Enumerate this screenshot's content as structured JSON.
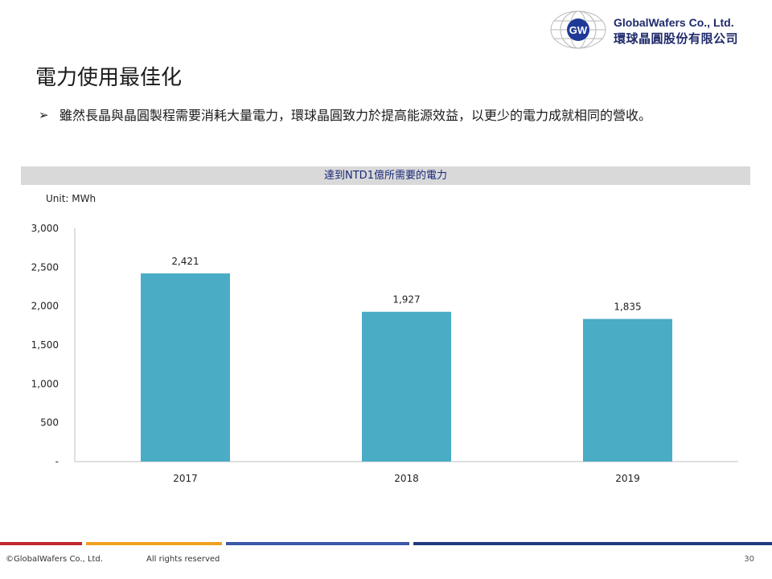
{
  "logo": {
    "company_en": "GlobalWafers Co., Ltd.",
    "company_zh": "環球晶圓股份有限公司",
    "mark": "GW"
  },
  "page_title": "電力使用最佳化",
  "bullet": {
    "icon": "arrow-bullet-icon",
    "glyph": "➢",
    "text": "雖然長晶與晶圓製程需要消耗大量電力，環球晶圓致力於提高能源效益，以更少的電力成就相同的營收。"
  },
  "chart_header": "達到NTD1億所需要的電力",
  "unit_label": "Unit: MWh",
  "chart_data": {
    "type": "bar",
    "title": "達到NTD1億所需要的電力",
    "categories": [
      "2017",
      "2018",
      "2019"
    ],
    "values": [
      2421,
      1927,
      1835
    ],
    "data_labels": [
      "2,421",
      "1,927",
      "1,835"
    ],
    "ylim": [
      0,
      3000
    ],
    "yticks": [
      0,
      500,
      1000,
      1500,
      2000,
      2500,
      3000
    ],
    "ytick_labels": [
      "-",
      "500",
      "1,000",
      "1,500",
      "2,000",
      "2,500",
      "3,000"
    ],
    "ylabel": "Unit: MWh",
    "xlabel": "",
    "grid": false,
    "legend": "none",
    "bar_color": "#4BACC6"
  },
  "colors": {
    "footer": [
      "#c0282d",
      "#f0a020",
      "#3b58a8",
      "#1f3a80"
    ]
  },
  "footer": {
    "copyright": "©GlobalWafers Co., Ltd.",
    "rights": "All rights reserved",
    "page_number": "30"
  }
}
